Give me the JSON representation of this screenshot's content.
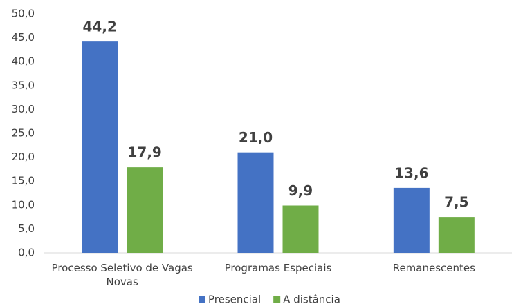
{
  "chart_data": {
    "type": "bar",
    "categories": [
      "Processo Seletivo de Vagas Novas",
      "Programas Especiais",
      "Remanescentes"
    ],
    "series": [
      {
        "name": "Presencial",
        "color": "#4472c4",
        "values": [
          44.2,
          21.0,
          13.6
        ],
        "value_labels": [
          "44,2",
          "21,0",
          "13,6"
        ]
      },
      {
        "name": "A distância",
        "color": "#70ad47",
        "values": [
          17.9,
          9.9,
          7.5
        ],
        "value_labels": [
          "17,9",
          "9,9",
          "7,5"
        ]
      }
    ],
    "ylim": [
      0,
      50
    ],
    "yticks": [
      {
        "value": 0,
        "label": "0,0"
      },
      {
        "value": 5,
        "label": "5,0"
      },
      {
        "value": 10,
        "label": "10,0"
      },
      {
        "value": 15,
        "label": "15,0"
      },
      {
        "value": 20,
        "label": "20,0"
      },
      {
        "value": 25,
        "label": "25,0"
      },
      {
        "value": 30,
        "label": "30,0"
      },
      {
        "value": 35,
        "label": "35,0"
      },
      {
        "value": 40,
        "label": "40,0"
      },
      {
        "value": 45,
        "label": "45,0"
      },
      {
        "value": 50,
        "label": "50,0"
      }
    ],
    "grid": false,
    "legend": "bottom"
  }
}
